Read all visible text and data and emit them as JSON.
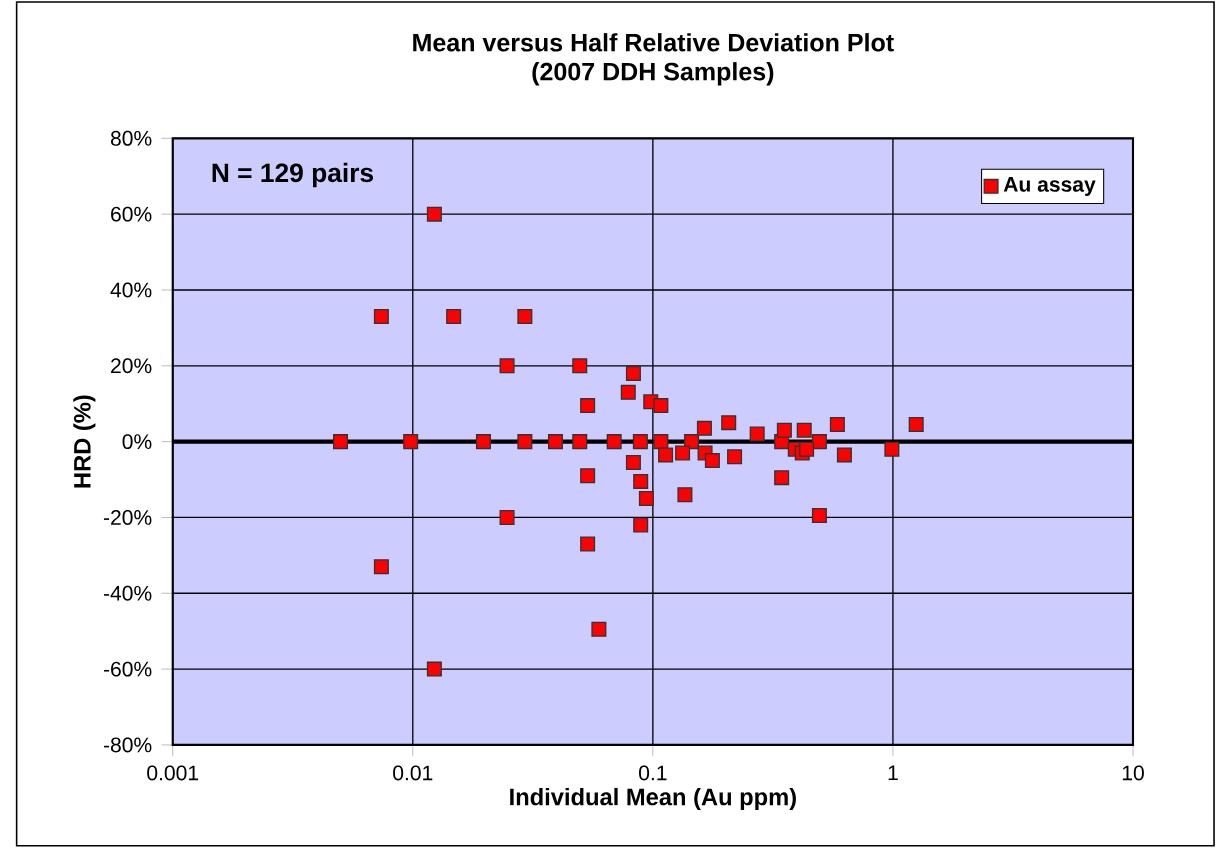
{
  "chart_data": {
    "type": "scatter",
    "title": "Mean versus Half Relative Deviation Plot",
    "subtitle": "(2007 DDH Samples)",
    "xlabel": "Individual Mean (Au ppm)",
    "ylabel": "HRD (%)",
    "annotations": [
      "N = 129 pairs"
    ],
    "log": "x",
    "grid": true,
    "legend": "top right",
    "marker": "square",
    "xlim": [
      0.001,
      10
    ],
    "xticks": [
      0.001,
      0.01,
      0.1,
      1,
      10
    ],
    "ylim": [
      -80,
      80
    ],
    "yticks": [
      {
        "value": -80,
        "label": "-80%"
      },
      {
        "value": -60,
        "label": "-60%"
      },
      {
        "value": -40,
        "label": "-40%"
      },
      {
        "value": -20,
        "label": "-20%"
      },
      {
        "value": 0,
        "label": "0%"
      },
      {
        "value": 20,
        "label": "20%"
      },
      {
        "value": 40,
        "label": "40%"
      },
      {
        "value": 60,
        "label": "60%"
      },
      {
        "value": 80,
        "label": "80%"
      }
    ],
    "ref_lines": [
      {
        "axis": "y",
        "value": 0,
        "color": "#000000"
      }
    ],
    "series": [
      {
        "name": "Au assay",
        "color": "#ff0000",
        "x": [
          0.005,
          0.0098,
          0.0197,
          0.0293,
          0.0393,
          0.0496,
          0.069,
          0.0887,
          0.108,
          0.145,
          0.344,
          0.494,
          0.0123,
          0.0074,
          0.0148,
          0.0293,
          0.0247,
          0.0496,
          0.083,
          0.079,
          0.0535,
          0.098,
          0.108,
          0.164,
          0.207,
          0.272,
          0.353,
          0.427,
          0.587,
          1.25,
          0.99,
          0.628,
          0.083,
          0.113,
          0.133,
          0.165,
          0.177,
          0.219,
          0.392,
          0.419,
          0.437,
          0.0535,
          0.089,
          0.094,
          0.0247,
          0.089,
          0.0535,
          0.0074,
          0.0596,
          0.0123,
          0.136,
          0.344,
          0.494
        ],
        "values": [
          0,
          0,
          0,
          0,
          0,
          0,
          0,
          0,
          0,
          0,
          0,
          0,
          60,
          33,
          33,
          33,
          20,
          20,
          18,
          13,
          9.5,
          10.5,
          9.5,
          3.5,
          5,
          2,
          3,
          3,
          4.5,
          4.5,
          -2,
          -3.5,
          -5.5,
          -3.5,
          -3,
          -3,
          -5,
          -4,
          -2,
          -3,
          -2,
          -9,
          -10.5,
          -15,
          -20,
          -22,
          -27,
          -33,
          -49.5,
          -60,
          -14,
          -9.5,
          -19.5
        ]
      }
    ]
  }
}
